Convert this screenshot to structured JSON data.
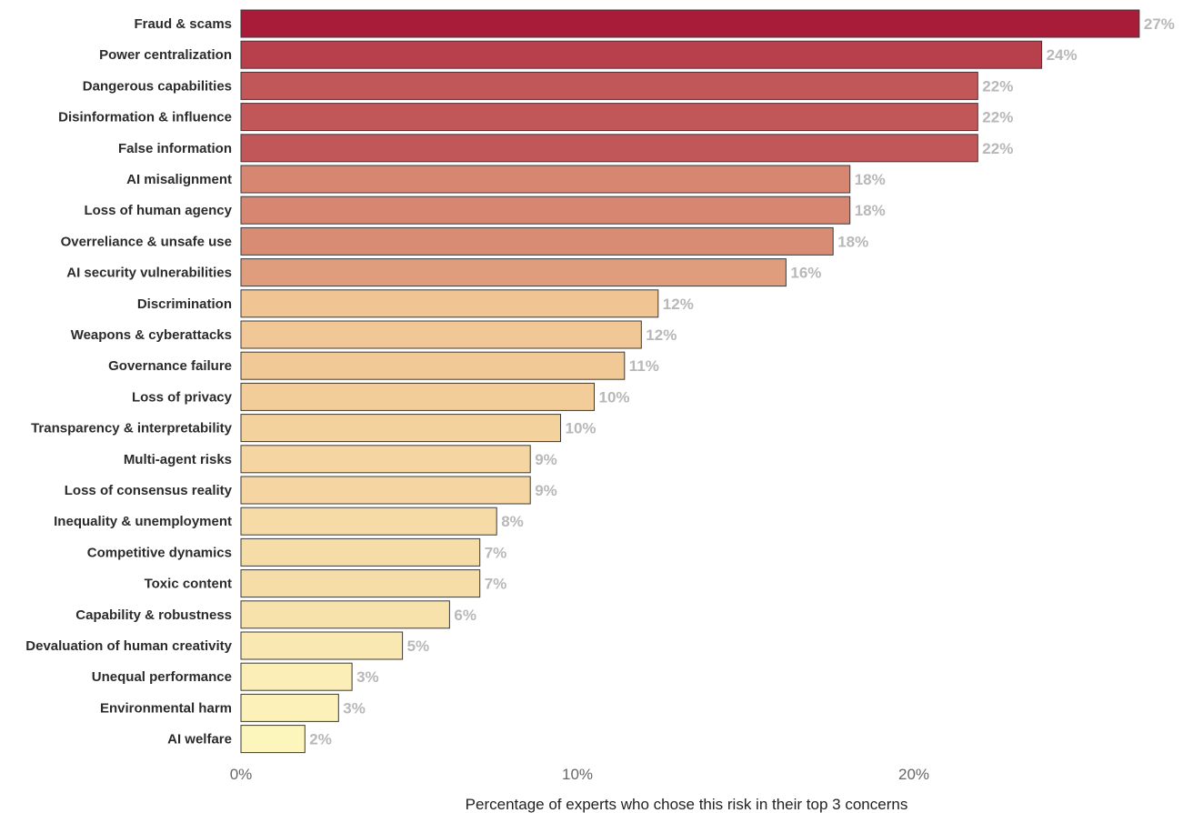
{
  "chart_data": {
    "type": "bar",
    "orientation": "horizontal",
    "title": "",
    "xlabel": "Percentage of experts who chose this risk in their top 3 concerns",
    "ylabel": "",
    "xlim": [
      0,
      27
    ],
    "x_ticks": [
      0,
      10,
      20
    ],
    "x_tick_labels": [
      "0%",
      "10%",
      "20%"
    ],
    "grid": false,
    "legend": "none",
    "categories": [
      "Fraud & scams",
      "Power centralization",
      "Dangerous capabilities",
      "Disinformation & influence",
      "False information",
      "AI misalignment",
      "Loss of human agency",
      "Overreliance & unsafe use",
      "AI security vulnerabilities",
      "Discrimination",
      "Weapons & cyberattacks",
      "Governance failure",
      "Loss of privacy",
      "Transparency & interpretability",
      "Multi-agent risks",
      "Loss of consensus reality",
      "Inequality & unemployment",
      "Competitive dynamics",
      "Toxic content",
      "Capability & robustness",
      "Devaluation of human creativity",
      "Unequal performance",
      "Environmental harm",
      "AI welfare"
    ],
    "values": [
      26.7,
      23.8,
      21.9,
      21.9,
      21.9,
      18.1,
      18.1,
      17.6,
      16.2,
      12.4,
      11.9,
      11.4,
      10.5,
      9.5,
      8.6,
      8.6,
      7.6,
      7.1,
      7.1,
      6.2,
      4.8,
      3.3,
      2.9,
      1.9
    ],
    "value_labels": [
      "27%",
      "24%",
      "22%",
      "22%",
      "22%",
      "18%",
      "18%",
      "18%",
      "16%",
      "12%",
      "12%",
      "11%",
      "10%",
      "10%",
      "9%",
      "9%",
      "8%",
      "7%",
      "7%",
      "6%",
      "5%",
      "3%",
      "3%",
      "2%"
    ],
    "colors": {
      "low": "#ffffc4",
      "mid": "#efc08f",
      "high": "#a81c3a",
      "bar_outline": "#3a3a3a",
      "value_label": "#b8b8b8"
    }
  }
}
